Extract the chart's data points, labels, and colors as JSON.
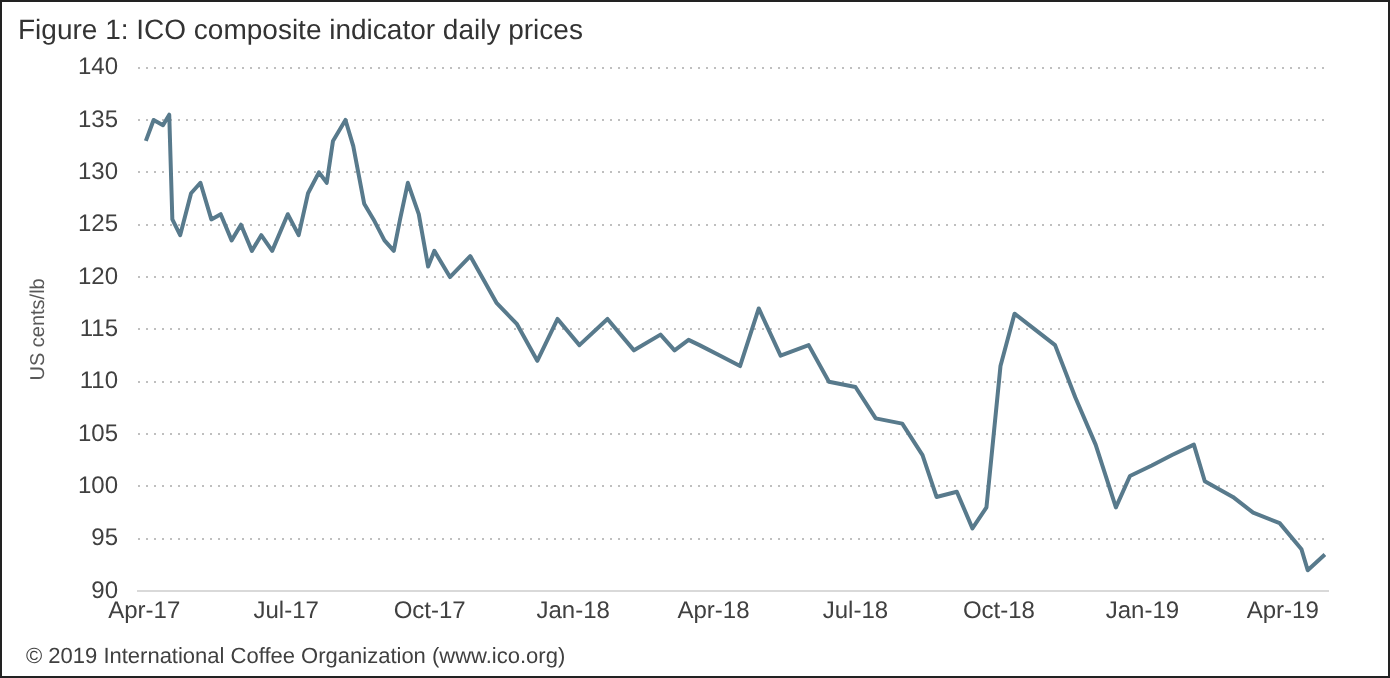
{
  "chart_data": {
    "type": "line",
    "title": "Figure 1: ICO composite indicator daily prices",
    "ylabel": "US cents/lb",
    "annotations": [
      "© 2019 International Coffee Organization (www.ico.org)"
    ],
    "x": [
      "2017-04-02",
      "2017-04-07",
      "2017-04-13",
      "2017-04-17",
      "2017-04-19",
      "2017-04-24",
      "2017-05-01",
      "2017-05-07",
      "2017-05-14",
      "2017-05-20",
      "2017-05-27",
      "2017-06-02",
      "2017-06-09",
      "2017-06-15",
      "2017-06-22",
      "2017-07-02",
      "2017-07-09",
      "2017-07-15",
      "2017-07-22",
      "2017-07-27",
      "2017-07-31",
      "2017-08-08",
      "2017-08-13",
      "2017-08-20",
      "2017-08-26",
      "2017-09-02",
      "2017-09-08",
      "2017-09-12",
      "2017-09-17",
      "2017-09-24",
      "2017-09-30",
      "2017-10-04",
      "2017-10-14",
      "2017-10-27",
      "2017-11-13",
      "2017-11-26",
      "2017-12-09",
      "2017-12-22",
      "2018-01-05",
      "2018-01-23",
      "2018-02-09",
      "2018-02-26",
      "2018-03-07",
      "2018-03-16",
      "2018-03-23",
      "2018-04-05",
      "2018-04-18",
      "2018-04-30",
      "2018-05-14",
      "2018-06-01",
      "2018-06-14",
      "2018-07-01",
      "2018-07-14",
      "2018-07-31",
      "2018-08-13",
      "2018-08-22",
      "2018-09-04",
      "2018-09-14",
      "2018-09-23",
      "2018-10-02",
      "2018-10-11",
      "2018-10-24",
      "2018-11-06",
      "2018-11-19",
      "2018-12-02",
      "2018-12-15",
      "2018-12-24",
      "2019-01-07",
      "2019-01-20",
      "2019-02-03",
      "2019-02-10",
      "2019-02-28",
      "2019-03-13",
      "2019-03-30",
      "2019-04-13",
      "2019-04-17",
      "2019-04-28"
    ],
    "series": [
      {
        "color": "#587a8c",
        "values": [
          133,
          135,
          134.5,
          135.5,
          125.5,
          124,
          128,
          129,
          125.5,
          126,
          123.5,
          125,
          122.5,
          124,
          122.5,
          126,
          124,
          128,
          130,
          129,
          133,
          135,
          132.5,
          127,
          125.5,
          123.5,
          122.5,
          125.5,
          129,
          126,
          121,
          122.5,
          120,
          122,
          117.5,
          115.5,
          112,
          116,
          113.5,
          116,
          113,
          114.5,
          113,
          114,
          113.5,
          112.5,
          111.5,
          117,
          112.5,
          113.5,
          110,
          109.5,
          106.5,
          106,
          103,
          99,
          99.5,
          96,
          98,
          111.5,
          116.5,
          115,
          113.5,
          108.5,
          104,
          98,
          101,
          102,
          103,
          104,
          100.5,
          99,
          97.5,
          96.5,
          94,
          92,
          93.5
        ]
      }
    ],
    "xlim": [
      "2017-03-28",
      "2019-04-30"
    ],
    "xticks": [
      {
        "value": "2017-04-01",
        "label": "Apr-17"
      },
      {
        "value": "2017-07-01",
        "label": "Jul-17"
      },
      {
        "value": "2017-10-01",
        "label": "Oct-17"
      },
      {
        "value": "2018-01-01",
        "label": "Jan-18"
      },
      {
        "value": "2018-04-01",
        "label": "Apr-18"
      },
      {
        "value": "2018-07-01",
        "label": "Jul-18"
      },
      {
        "value": "2018-10-01",
        "label": "Oct-18"
      },
      {
        "value": "2019-01-01",
        "label": "Jan-19"
      },
      {
        "value": "2019-04-01",
        "label": "Apr-19"
      }
    ],
    "ylim": [
      90,
      140
    ],
    "yticks": [
      90,
      95,
      100,
      105,
      110,
      115,
      120,
      125,
      130,
      135,
      140
    ],
    "grid": "y",
    "legend": false,
    "marker": "none",
    "line_style": "solid"
  }
}
